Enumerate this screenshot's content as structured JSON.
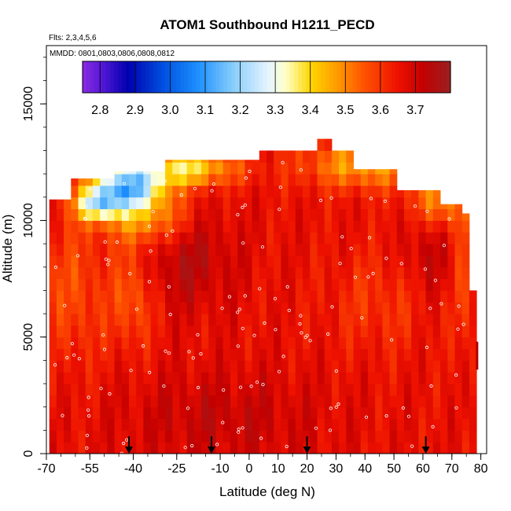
{
  "chart_data": {
    "type": "heatmap",
    "title": "ATOM1 Southbound H1211_PECD",
    "subtitle_flights": "Flts: 2,3,4,5,6",
    "subtitle_dates": "MMDD: 0801,0803,0806,0808,0812",
    "xlabel": "Latitude (deg N)",
    "ylabel": "Altitude (m)",
    "xlim": [
      -70,
      82
    ],
    "ylim": [
      0,
      17500
    ],
    "x_ticks": [
      -70,
      -55,
      -40,
      -25,
      -10,
      0,
      10,
      20,
      30,
      40,
      50,
      60,
      70,
      80
    ],
    "y_ticks": [
      0,
      5000,
      10000,
      15000
    ],
    "colorbar": {
      "ticks": [
        2.8,
        2.9,
        3.0,
        3.1,
        3.2,
        3.3,
        3.4,
        3.5,
        3.6,
        3.7
      ],
      "range": [
        2.75,
        3.8
      ],
      "stops": [
        {
          "v": 2.75,
          "c": "#8a2be2"
        },
        {
          "v": 2.8,
          "c": "#5a1ad8"
        },
        {
          "v": 2.88,
          "c": "#0000b0"
        },
        {
          "v": 2.98,
          "c": "#0050e0"
        },
        {
          "v": 3.08,
          "c": "#1e90ff"
        },
        {
          "v": 3.18,
          "c": "#87cefa"
        },
        {
          "v": 3.28,
          "c": "#e6f4ff"
        },
        {
          "v": 3.33,
          "c": "#ffffc8"
        },
        {
          "v": 3.4,
          "c": "#ffd700"
        },
        {
          "v": 3.47,
          "c": "#ffa000"
        },
        {
          "v": 3.55,
          "c": "#ff5500"
        },
        {
          "v": 3.65,
          "c": "#ee1100"
        },
        {
          "v": 3.72,
          "c": "#c40000"
        },
        {
          "v": 3.8,
          "c": "#9a2020"
        }
      ]
    },
    "arrows_lat": [
      -41.5,
      -13,
      20,
      61
    ],
    "background_value": 3.65
  }
}
